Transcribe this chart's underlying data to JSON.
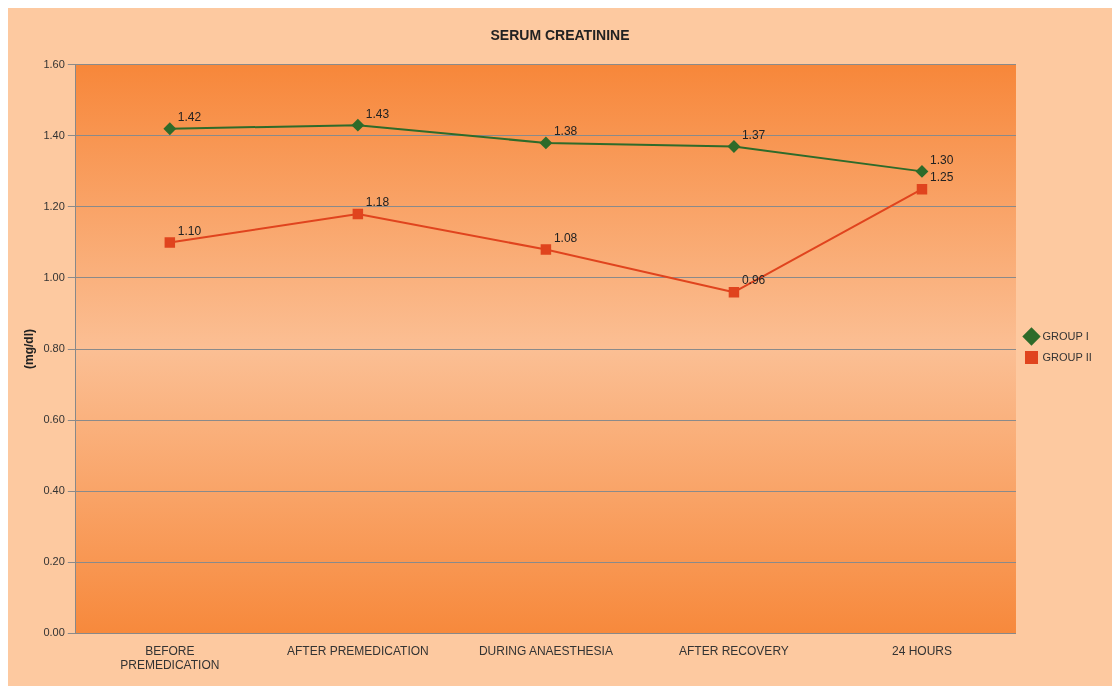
{
  "chart_data": {
    "type": "line",
    "title": "SERUM CREATININE",
    "ylabel": "(mg/dl)",
    "categories": [
      "BEFORE PREMEDICATION",
      "AFTER PREMEDICATION",
      "DURING ANAESTHESIA",
      "AFTER RECOVERY",
      "24 HOURS"
    ],
    "series": [
      {
        "name": "GROUP I",
        "color": "#2e6b2a",
        "marker": "diamond",
        "values": [
          1.42,
          1.43,
          1.38,
          1.37,
          1.3
        ],
        "value_labels": [
          "1.42",
          "1.43",
          "1.38",
          "1.37",
          "1.30"
        ]
      },
      {
        "name": "GROUP II",
        "color": "#e0441e",
        "marker": "square",
        "values": [
          1.1,
          1.18,
          1.08,
          0.96,
          1.25
        ],
        "value_labels": [
          "1.10",
          "1.18",
          "1.08",
          "0.96",
          "1.25"
        ]
      }
    ],
    "ylim": [
      0,
      1.6
    ],
    "yticks": [
      {
        "value": 0,
        "label": "0.00"
      },
      {
        "value": 0.2,
        "label": "0.20"
      },
      {
        "value": 0.4,
        "label": "0.40"
      },
      {
        "value": 0.6,
        "label": "0.60"
      },
      {
        "value": 0.8,
        "label": "0.80"
      },
      {
        "value": 1.0,
        "label": "1.00"
      },
      {
        "value": 1.2,
        "label": "1.20"
      },
      {
        "value": 1.4,
        "label": "1.40"
      },
      {
        "value": 1.6,
        "label": "1.60"
      }
    ],
    "grid": "y",
    "legend": "right",
    "line_style": "solid"
  }
}
